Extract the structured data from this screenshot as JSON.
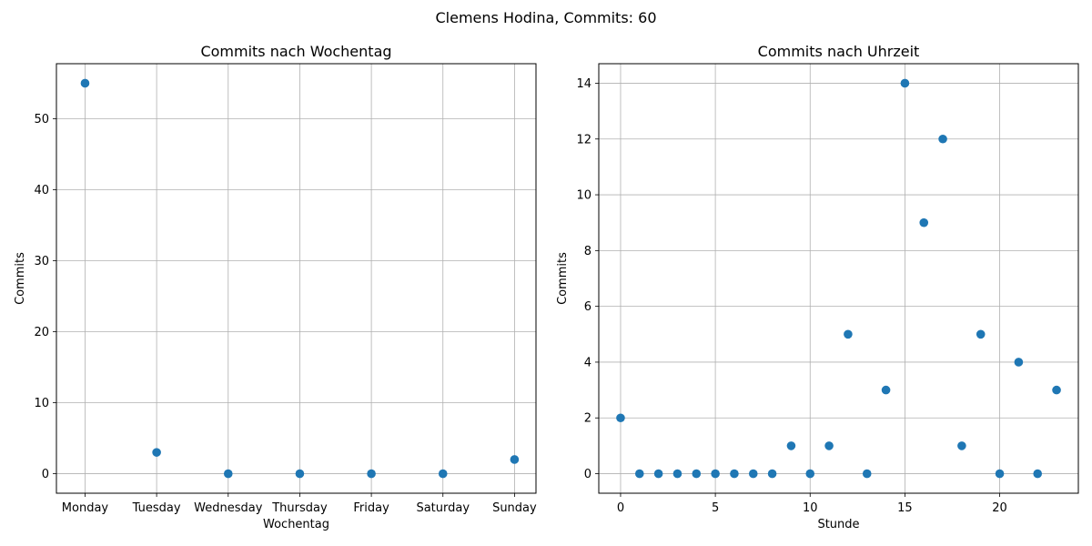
{
  "figure": {
    "suptitle": "Clemens Hodina, Commits: 60"
  },
  "colors": {
    "marker": "#1f77b4",
    "grid": "#b0b0b0",
    "axes": "#000000",
    "background": "#ffffff"
  },
  "chart_data": [
    {
      "type": "scatter",
      "title": "Commits nach Wochentag",
      "xlabel": "Wochentag",
      "ylabel": "Commits",
      "x_categories": [
        "Monday",
        "Tuesday",
        "Wednesday",
        "Thursday",
        "Friday",
        "Saturday",
        "Sunday"
      ],
      "y": [
        55,
        3,
        0,
        0,
        0,
        0,
        2
      ],
      "xlim": [
        -0.4,
        6.3
      ],
      "ylim": [
        -2.75,
        57.75
      ],
      "yticks": [
        0,
        10,
        20,
        30,
        40,
        50
      ],
      "grid": true
    },
    {
      "type": "scatter",
      "title": "Commits nach Uhrzeit",
      "xlabel": "Stunde",
      "ylabel": "Commits",
      "x": [
        0,
        1,
        2,
        3,
        4,
        5,
        6,
        7,
        8,
        9,
        10,
        11,
        12,
        13,
        14,
        15,
        16,
        17,
        18,
        19,
        20,
        21,
        22,
        23
      ],
      "y": [
        2,
        0,
        0,
        0,
        0,
        0,
        0,
        0,
        0,
        1,
        0,
        1,
        5,
        0,
        3,
        14,
        9,
        12,
        1,
        5,
        0,
        4,
        0,
        3
      ],
      "xlim": [
        -1.15,
        24.15
      ],
      "ylim": [
        -0.7,
        14.7
      ],
      "xticks": [
        0,
        5,
        10,
        15,
        20
      ],
      "yticks": [
        0,
        2,
        4,
        6,
        8,
        10,
        12,
        14
      ],
      "grid": true
    }
  ]
}
